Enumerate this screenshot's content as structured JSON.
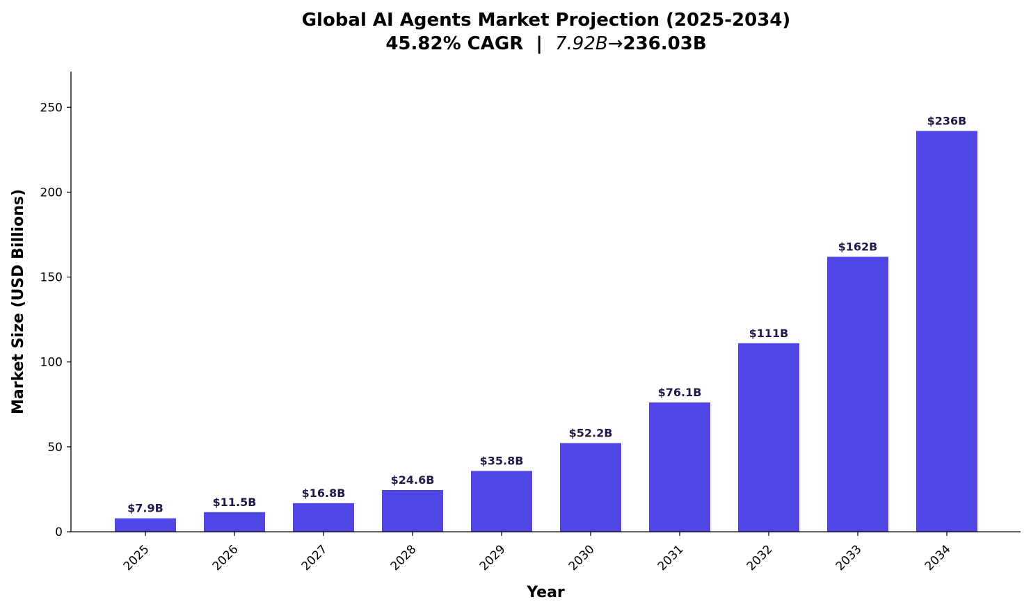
{
  "chart_data": {
    "type": "bar",
    "title": "Global AI Agents Market Projection (2025-2034)",
    "subtitle_parts": [
      "45.82% CAGR  |  ",
      "7.92B→",
      "236.03B"
    ],
    "xlabel": "Year",
    "ylabel": "Market Size (USD Billions)",
    "categories": [
      "2025",
      "2026",
      "2027",
      "2028",
      "2029",
      "2030",
      "2031",
      "2032",
      "2033",
      "2034"
    ],
    "values": [
      7.92,
      11.55,
      16.84,
      24.56,
      35.81,
      52.22,
      76.15,
      111.04,
      161.93,
      236.03
    ],
    "data_labels": [
      "$7.9B",
      "$11.5B",
      "$16.8B",
      "$24.6B",
      "$35.8B",
      "$52.2B",
      "$76.1B",
      "$111B",
      "$162B",
      "$236B"
    ],
    "ylim": [
      0,
      271
    ],
    "yticks": [
      0,
      50,
      100,
      150,
      200,
      250
    ],
    "grid": false,
    "legend": "none",
    "bar_color": "#4f46e5",
    "label_color": "#1e1b4b"
  }
}
